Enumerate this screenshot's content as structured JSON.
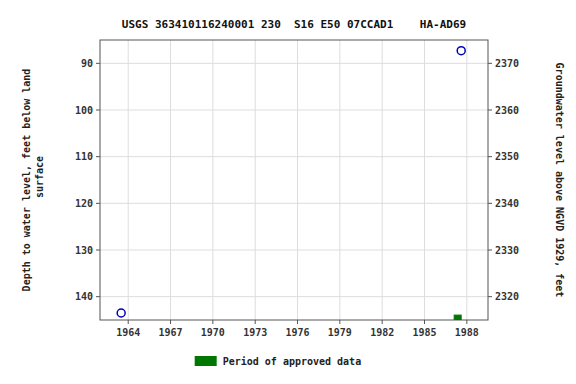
{
  "chart_data": {
    "type": "scatter",
    "title": "USGS 363410116240001 230  S16 E50 07CCAD1    HA-AD69",
    "y_label": "Depth to water level, feet below land\n surface",
    "y2_label": "Groundwater level above NGVD 1929, feet",
    "xlim": [
      1962.0,
      1989.5
    ],
    "xticks": [
      1964,
      1967,
      1970,
      1973,
      1976,
      1979,
      1982,
      1985,
      1988
    ],
    "ylim": [
      145,
      85
    ],
    "yticks": [
      90,
      100,
      110,
      120,
      130,
      140
    ],
    "y2lim": [
      2315,
      2375
    ],
    "y2ticks": [
      2320,
      2330,
      2340,
      2350,
      2360,
      2370
    ],
    "grid": true,
    "legend": "bottom",
    "series": [
      {
        "color": "#0000bb",
        "marker": "open-circle",
        "x": [
          1963.5,
          1987.6
        ],
        "values": [
          143.5,
          87.3
        ]
      },
      {
        "name": "Period of approved data",
        "color": "#007700",
        "marker": "square",
        "x": [
          1987.35
        ],
        "values": [
          144.7
        ]
      }
    ]
  }
}
